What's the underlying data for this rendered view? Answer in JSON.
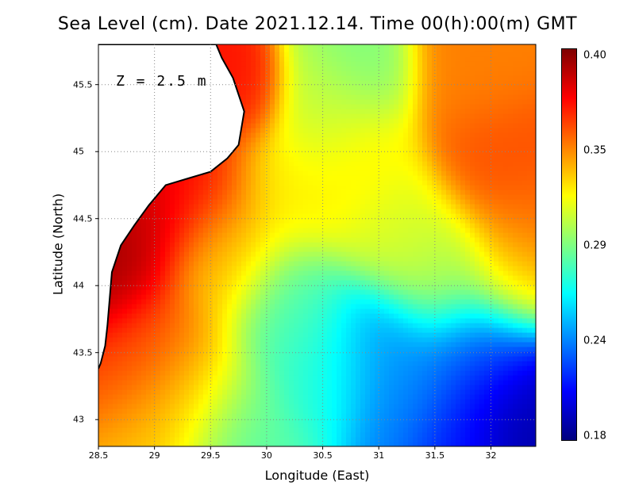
{
  "title": "Sea Level (cm). Date 2021.12.14. Time 00(h):00(m) GMT",
  "depth_label": "Z = 2.5 m",
  "chart_data": {
    "type": "heatmap",
    "variable": "Sea Level (cm)",
    "xlabel": "Longitude (East)",
    "ylabel": "Latitude (North)",
    "xlim": [
      28.5,
      32.4
    ],
    "ylim": [
      42.8,
      45.8
    ],
    "x_ticks": [
      "28.5",
      "29",
      "29.5",
      "30",
      "30.5",
      "31",
      "31.5",
      "32"
    ],
    "y_ticks": [
      "43",
      "43.5",
      "44",
      "44.5",
      "45",
      "45.5"
    ],
    "grid": true,
    "colorbar": {
      "min": 0.18,
      "max": 0.4,
      "tick_labels": [
        "0.40",
        "0.35",
        "0.29",
        "0.24",
        "0.18"
      ],
      "stops": [
        "#00007f",
        "#0000ff",
        "#0080ff",
        "#00ffff",
        "#80ff80",
        "#ffff00",
        "#ff8000",
        "#ff0000",
        "#7f0000"
      ]
    },
    "field_centers": [
      {
        "lon": 28.6,
        "lat": 44.1,
        "value": 0.395,
        "spread": 0.25
      },
      {
        "lon": 28.9,
        "lat": 44.5,
        "value": 0.385,
        "spread": 0.3
      },
      {
        "lon": 29.4,
        "lat": 44.8,
        "value": 0.37,
        "spread": 0.3
      },
      {
        "lon": 29.8,
        "lat": 45.4,
        "value": 0.37,
        "spread": 0.2
      },
      {
        "lon": 28.9,
        "lat": 43.6,
        "value": 0.36,
        "spread": 0.3
      },
      {
        "lon": 29.3,
        "lat": 43.2,
        "value": 0.33,
        "spread": 0.35
      },
      {
        "lon": 29.6,
        "lat": 44.2,
        "value": 0.33,
        "spread": 0.3
      },
      {
        "lon": 30.2,
        "lat": 44.8,
        "value": 0.32,
        "spread": 0.35
      },
      {
        "lon": 30.5,
        "lat": 45.3,
        "value": 0.3,
        "spread": 0.25
      },
      {
        "lon": 30.9,
        "lat": 45.6,
        "value": 0.29,
        "spread": 0.25
      },
      {
        "lon": 30.8,
        "lat": 45.0,
        "value": 0.32,
        "spread": 0.3
      },
      {
        "lon": 31.2,
        "lat": 44.4,
        "value": 0.31,
        "spread": 0.3
      },
      {
        "lon": 31.8,
        "lat": 45.6,
        "value": 0.345,
        "spread": 0.3
      },
      {
        "lon": 32.0,
        "lat": 44.9,
        "value": 0.355,
        "spread": 0.3
      },
      {
        "lon": 32.3,
        "lat": 44.45,
        "value": 0.35,
        "spread": 0.25
      },
      {
        "lon": 32.2,
        "lat": 44.1,
        "value": 0.325,
        "spread": 0.25
      },
      {
        "lon": 31.6,
        "lat": 44.1,
        "value": 0.3,
        "spread": 0.3
      },
      {
        "lon": 30.2,
        "lat": 43.8,
        "value": 0.28,
        "spread": 0.3
      },
      {
        "lon": 30.5,
        "lat": 43.4,
        "value": 0.27,
        "spread": 0.3
      },
      {
        "lon": 29.8,
        "lat": 42.9,
        "value": 0.28,
        "spread": 0.3
      },
      {
        "lon": 31.0,
        "lat": 43.5,
        "value": 0.24,
        "spread": 0.3
      },
      {
        "lon": 31.3,
        "lat": 43.1,
        "value": 0.235,
        "spread": 0.3
      },
      {
        "lon": 31.9,
        "lat": 43.5,
        "value": 0.225,
        "spread": 0.3
      },
      {
        "lon": 32.2,
        "lat": 43.0,
        "value": 0.19,
        "spread": 0.3
      },
      {
        "lon": 31.7,
        "lat": 42.85,
        "value": 0.21,
        "spread": 0.25
      }
    ],
    "land_polygon_lonlat": [
      [
        28.5,
        45.8
      ],
      [
        29.55,
        45.8
      ],
      [
        29.6,
        45.7
      ],
      [
        29.7,
        45.55
      ],
      [
        29.8,
        45.3
      ],
      [
        29.75,
        45.05
      ],
      [
        29.65,
        44.95
      ],
      [
        29.5,
        44.85
      ],
      [
        29.3,
        44.8
      ],
      [
        29.1,
        44.75
      ],
      [
        28.95,
        44.6
      ],
      [
        28.82,
        44.45
      ],
      [
        28.7,
        44.3
      ],
      [
        28.62,
        44.1
      ],
      [
        28.6,
        43.9
      ],
      [
        28.58,
        43.7
      ],
      [
        28.56,
        43.55
      ],
      [
        28.52,
        43.42
      ],
      [
        28.5,
        43.38
      ]
    ],
    "land_color": "#ffffff"
  }
}
